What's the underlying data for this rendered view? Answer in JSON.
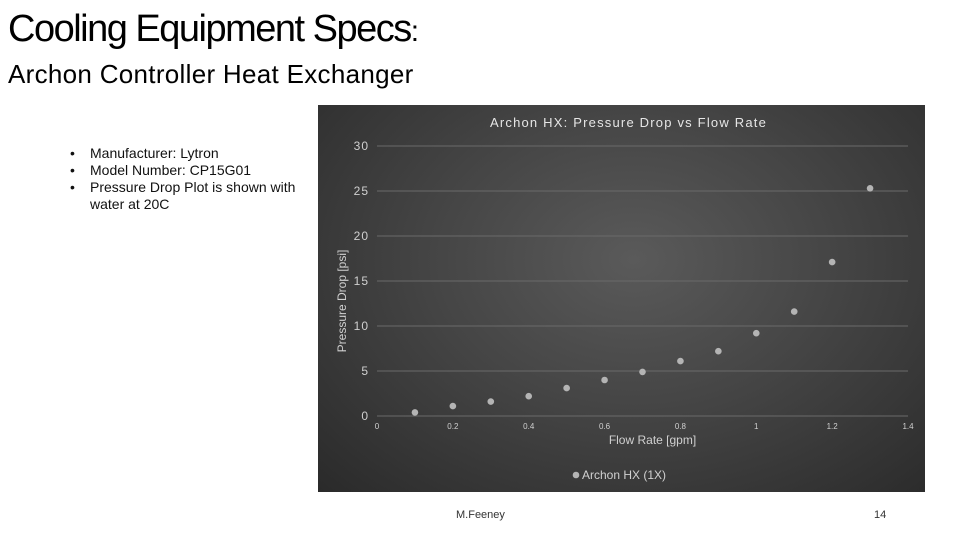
{
  "slide": {
    "title": "Cooling Equipment Specs",
    "title_colon": ":",
    "subtitle": "Archon Controller Heat Exchanger",
    "bullets": [
      "Manufacturer: Lytron",
      "Model Number: CP15G01",
      "Pressure Drop Plot is shown with water at 20C"
    ],
    "footer_author": "M.Feeney",
    "page_number": "14"
  },
  "colors": {
    "panel_bg": "#454545",
    "gridline": "#6a6a6a",
    "marker": "#b4b4b4",
    "axis_text": "#d0d0d0"
  },
  "chart_data": {
    "type": "scatter",
    "title": "Archon HX: Pressure Drop vs Flow Rate",
    "xlabel": "Flow Rate [gpm]",
    "ylabel": "Pressure Drop [psi]",
    "xlim": [
      0,
      1.4
    ],
    "ylim": [
      0,
      30
    ],
    "x_ticks": [
      0,
      0.2,
      0.4,
      0.6,
      0.8,
      1,
      1.2,
      1.4
    ],
    "x_tick_labels": [
      "0",
      "0.2",
      "0.4",
      "0.6",
      "0.8",
      "1",
      "1.2",
      "1.4"
    ],
    "y_ticks": [
      0,
      5,
      10,
      15,
      20,
      25,
      30
    ],
    "y_tick_labels": [
      "0",
      "5",
      "10",
      "15",
      "20",
      "25",
      "30"
    ],
    "grid": true,
    "legend_position": "bottom",
    "series": [
      {
        "name": "Archon HX (1X)",
        "x": [
          0.1,
          0.2,
          0.3,
          0.4,
          0.5,
          0.6,
          0.7,
          0.8,
          0.9,
          1.0,
          1.1,
          1.2,
          1.3
        ],
        "y": [
          0.4,
          1.1,
          1.6,
          2.2,
          3.1,
          4.0,
          4.9,
          6.1,
          7.2,
          9.2,
          11.6,
          17.1,
          25.3
        ]
      }
    ]
  }
}
